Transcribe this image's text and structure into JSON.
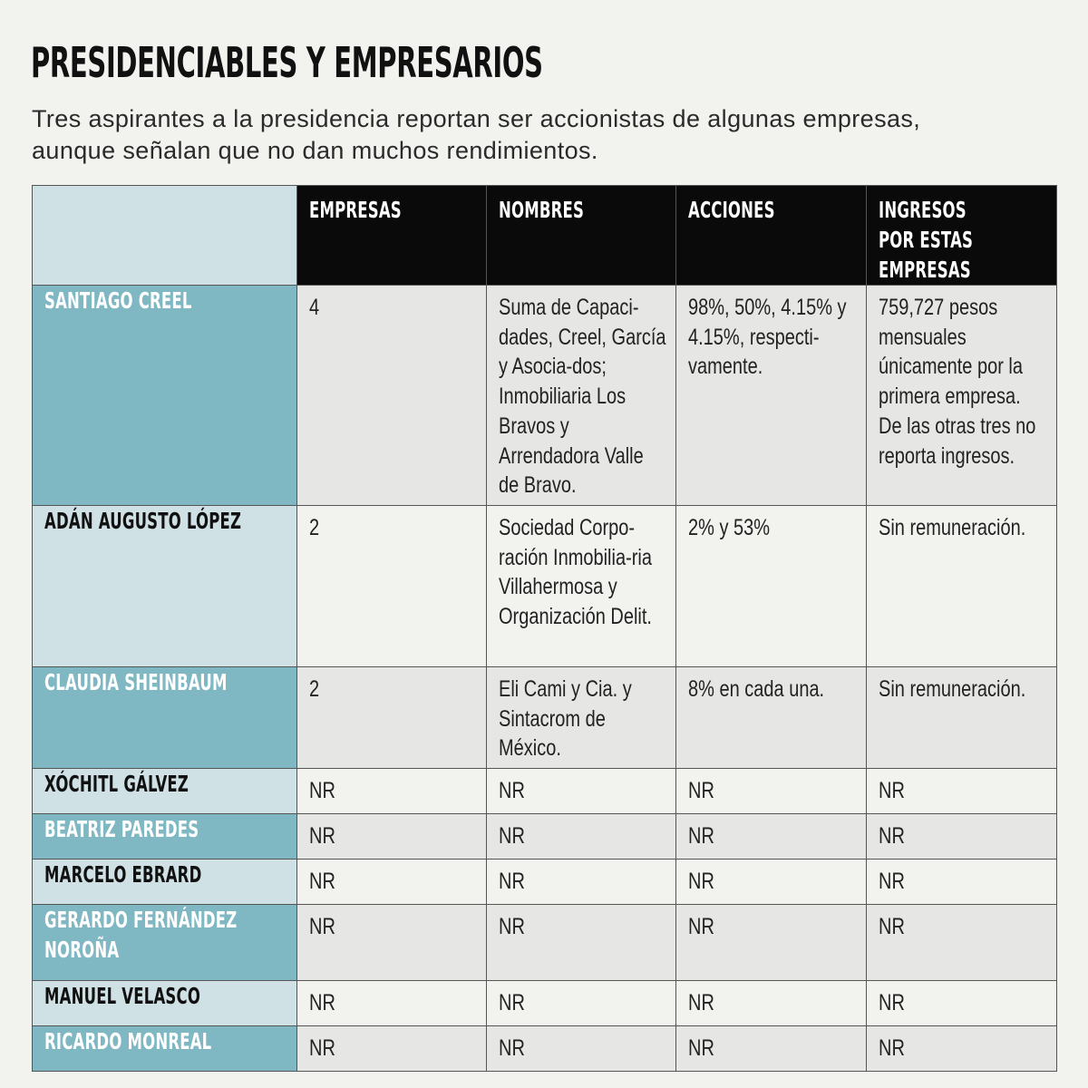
{
  "title": "PRESIDENCIABLES Y EMPRESARIOS",
  "subtitle": "Tres aspirantes a la presidencia reportan ser accionistas de algunas empresas, aunque señalan que no dan muchos rendimientos.",
  "headers": [
    "EMPRESAS",
    "NOMBRES",
    "ACCIONES",
    "INGRESOS POR ESTAS EMPRESAS"
  ],
  "rows": [
    {
      "name": "SANTIAGO CREEL",
      "empresas": "4",
      "nombres": "Suma de Capaci-dades, Creel, García y Asocia-dos; Inmobiliaria Los Bravos y Arrendadora Valle de Bravo.",
      "acciones": "98%, 50%, 4.15% y 4.15%, respecti-vamente.",
      "ingresos": "759,727 pesos mensuales únicamente por la primera empresa. De las otras tres no reporta ingresos."
    },
    {
      "name": "ADÁN AUGUSTO LÓPEZ",
      "empresas": "2",
      "nombres": "Sociedad Corpo-ración Inmobilia-ria Villahermosa y Organización Delit.",
      "acciones": "2% y 53%",
      "ingresos": "Sin remuneración."
    },
    {
      "name": "CLAUDIA SHEINBAUM",
      "empresas": "2",
      "nombres": "Eli Cami y Cia. y Sintacrom de México.",
      "acciones": "8% en cada una.",
      "ingresos": "Sin remuneración."
    },
    {
      "name": "XÓCHITL GÁLVEZ",
      "empresas": "NR",
      "nombres": "NR",
      "acciones": "NR",
      "ingresos": "NR"
    },
    {
      "name": "BEATRIZ PAREDES",
      "empresas": "NR",
      "nombres": "NR",
      "acciones": "NR",
      "ingresos": "NR"
    },
    {
      "name": "MARCELO EBRARD",
      "empresas": "NR",
      "nombres": "NR",
      "acciones": "NR",
      "ingresos": "NR"
    },
    {
      "name": "GERARDO FERNÁNDEZ NOROÑA",
      "empresas": "NR",
      "nombres": "NR",
      "acciones": "NR",
      "ingresos": "NR"
    },
    {
      "name": "MANUEL VELASCO",
      "empresas": "NR",
      "nombres": "NR",
      "acciones": "NR",
      "ingresos": "NR"
    },
    {
      "name": "RICARDO MONREAL",
      "empresas": "NR",
      "nombres": "NR",
      "acciones": "NR",
      "ingresos": "NR"
    }
  ],
  "colors": {
    "background": "#f2f2ef",
    "header_bg": "#0a0a0a",
    "name_dark": "#7fb7c3",
    "name_light": "#cfe1e5",
    "row_shade": "#e6e6e4"
  }
}
